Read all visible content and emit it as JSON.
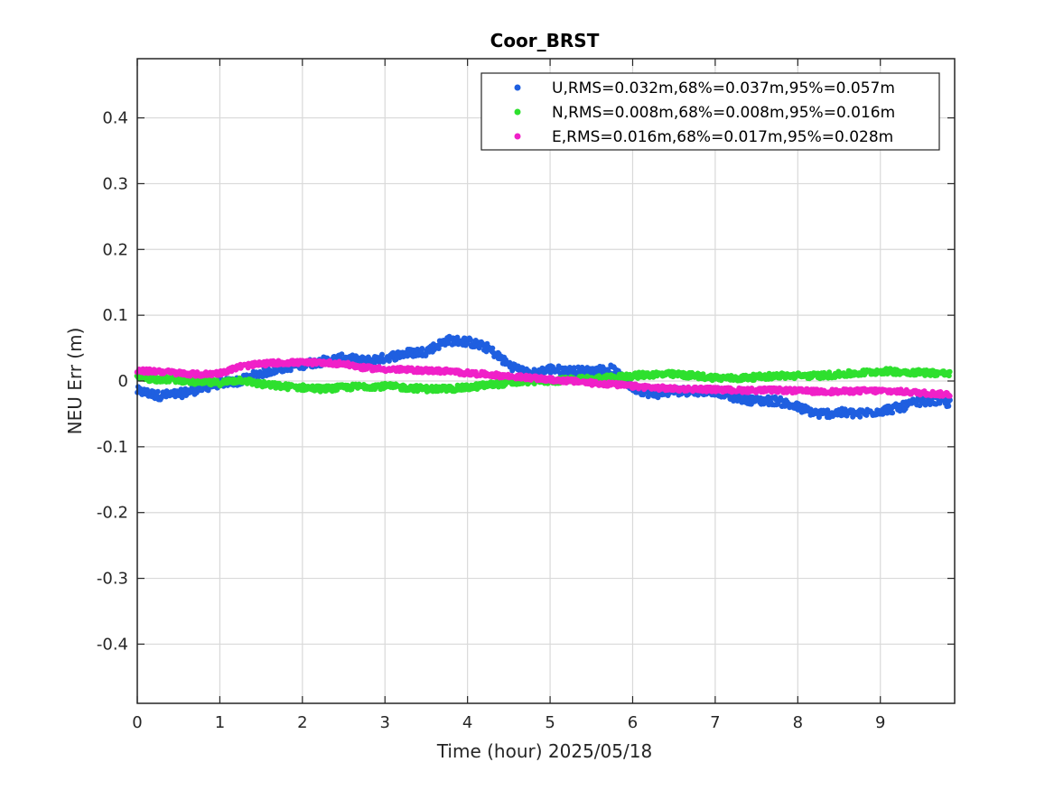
{
  "chart_data": {
    "type": "scatter",
    "title": "Coor_BRST",
    "xlabel": "Time (hour)  2025/05/18",
    "ylabel": "NEU Err (m)",
    "xlim": [
      0,
      9.9
    ],
    "ylim": [
      -0.49,
      0.49
    ],
    "xticks": [
      "0",
      "1",
      "2",
      "3",
      "4",
      "5",
      "6",
      "7",
      "8",
      "9"
    ],
    "yticks": [
      "-0.4",
      "-0.3",
      "-0.2",
      "-0.1",
      "0",
      "0.1",
      "0.2",
      "0.3",
      "0.4"
    ],
    "grid": true,
    "legend_position": "top-right",
    "series": [
      {
        "name": "U,RMS=0.032m,68%=0.037m,95%=0.057m",
        "color": "#1f5fe0",
        "x": [
          0.0,
          0.25,
          0.5,
          0.75,
          1.0,
          1.25,
          1.5,
          1.75,
          2.0,
          2.25,
          2.5,
          2.75,
          3.0,
          3.25,
          3.5,
          3.75,
          4.0,
          4.25,
          4.5,
          4.75,
          5.0,
          5.25,
          5.5,
          5.75,
          6.0,
          6.25,
          6.5,
          6.75,
          7.0,
          7.25,
          7.5,
          7.75,
          8.0,
          8.25,
          8.5,
          8.75,
          9.0,
          9.25,
          9.5,
          9.75,
          9.85
        ],
        "y": [
          -0.015,
          -0.022,
          -0.02,
          -0.012,
          -0.003,
          0.0,
          0.012,
          0.02,
          0.025,
          0.03,
          0.035,
          0.03,
          0.035,
          0.042,
          0.045,
          0.062,
          0.06,
          0.05,
          0.025,
          0.01,
          0.018,
          0.015,
          0.015,
          0.018,
          -0.01,
          -0.02,
          -0.015,
          -0.015,
          -0.015,
          -0.025,
          -0.03,
          -0.03,
          -0.04,
          -0.05,
          -0.048,
          -0.05,
          -0.045,
          -0.04,
          -0.03,
          -0.03,
          -0.035
        ]
      },
      {
        "name": "N,RMS=0.008m,68%=0.008m,95%=0.016m",
        "color": "#2ee02e",
        "x": [
          0.0,
          0.25,
          0.5,
          0.75,
          1.0,
          1.25,
          1.5,
          1.75,
          2.0,
          2.25,
          2.5,
          2.75,
          3.0,
          3.25,
          3.5,
          3.75,
          4.0,
          4.25,
          4.5,
          4.75,
          5.0,
          5.25,
          5.5,
          5.75,
          6.0,
          6.25,
          6.5,
          6.75,
          7.0,
          7.25,
          7.5,
          7.75,
          8.0,
          8.25,
          8.5,
          8.75,
          9.0,
          9.25,
          9.5,
          9.75,
          9.85
        ],
        "y": [
          0.005,
          0.003,
          0.002,
          -0.002,
          -0.003,
          0.002,
          -0.005,
          -0.008,
          -0.01,
          -0.012,
          -0.01,
          -0.008,
          -0.008,
          -0.01,
          -0.012,
          -0.012,
          -0.01,
          -0.006,
          -0.003,
          0.0,
          0.0,
          0.002,
          0.003,
          0.005,
          0.008,
          0.01,
          0.01,
          0.008,
          0.005,
          0.004,
          0.006,
          0.008,
          0.008,
          0.008,
          0.01,
          0.012,
          0.015,
          0.014,
          0.013,
          0.012,
          0.01
        ]
      },
      {
        "name": "E,RMS=0.016m,68%=0.017m,95%=0.028m",
        "color": "#f020c8",
        "x": [
          0.0,
          0.25,
          0.5,
          0.75,
          1.0,
          1.25,
          1.5,
          1.75,
          2.0,
          2.25,
          2.5,
          2.75,
          3.0,
          3.25,
          3.5,
          3.75,
          4.0,
          4.25,
          4.5,
          4.75,
          5.0,
          5.25,
          5.5,
          5.75,
          6.0,
          6.25,
          6.5,
          6.75,
          7.0,
          7.25,
          7.5,
          7.75,
          8.0,
          8.25,
          8.5,
          8.75,
          9.0,
          9.25,
          9.5,
          9.75,
          9.85
        ],
        "y": [
          0.015,
          0.015,
          0.012,
          0.01,
          0.012,
          0.022,
          0.026,
          0.028,
          0.028,
          0.028,
          0.026,
          0.02,
          0.018,
          0.017,
          0.016,
          0.015,
          0.012,
          0.01,
          0.007,
          0.005,
          0.002,
          0.0,
          -0.003,
          -0.005,
          -0.008,
          -0.01,
          -0.012,
          -0.012,
          -0.013,
          -0.014,
          -0.014,
          -0.014,
          -0.015,
          -0.016,
          -0.016,
          -0.015,
          -0.015,
          -0.016,
          -0.018,
          -0.02,
          -0.02
        ]
      }
    ]
  }
}
